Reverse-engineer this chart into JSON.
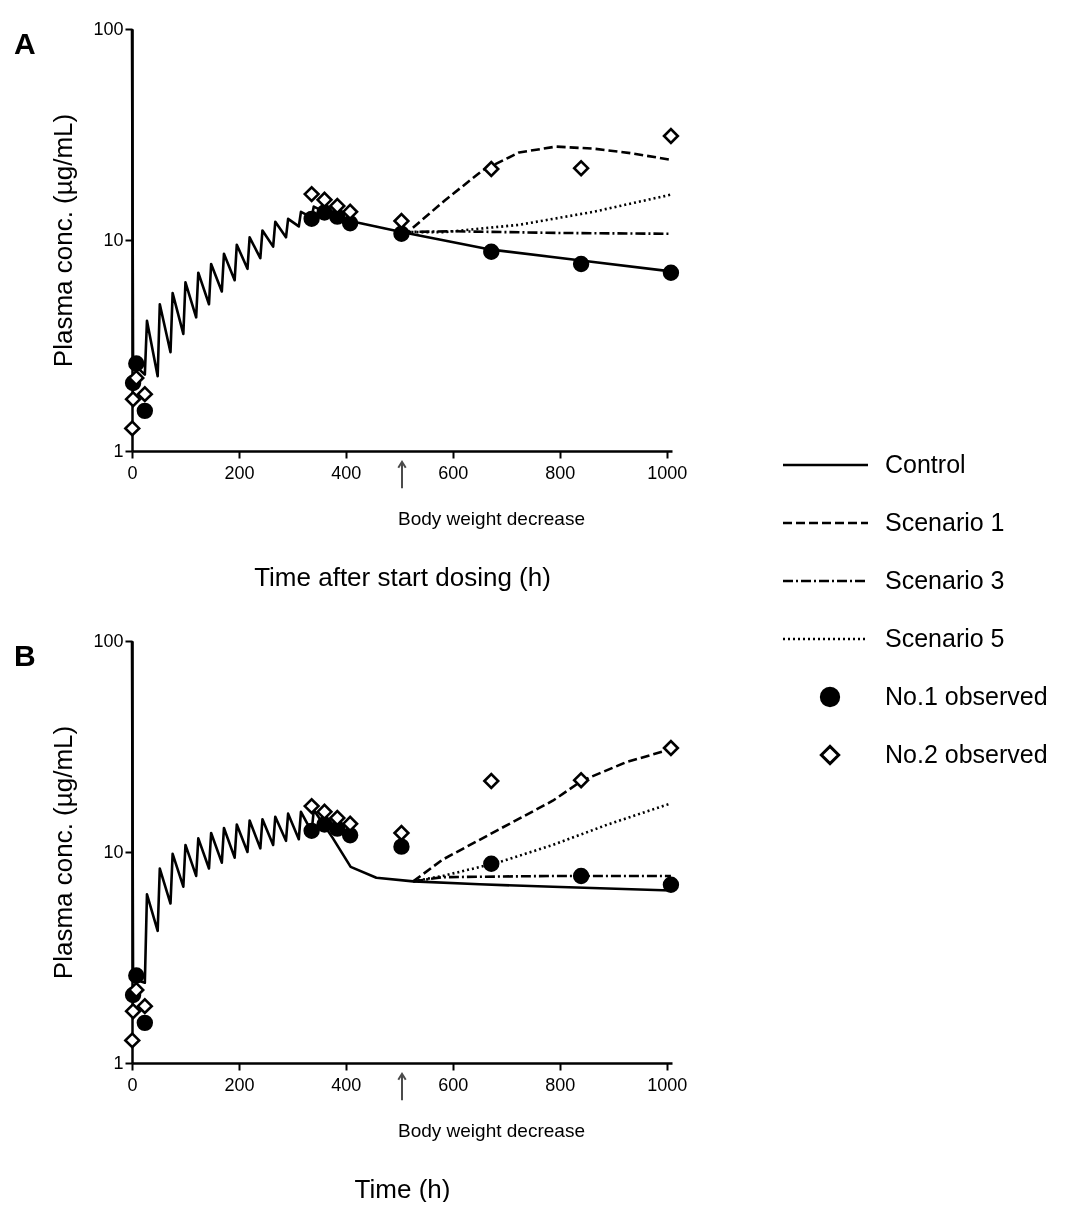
{
  "chart_data": [
    {
      "type": "line",
      "title": "A",
      "xlabel": "Time after start dosing (h)",
      "ylabel": "Plasma conc. (µg/mL)",
      "xlim": [
        0,
        1010
      ],
      "xticks": [
        0,
        200,
        400,
        600,
        800,
        1000
      ],
      "ylim": [
        1,
        100
      ],
      "yticks": [
        1,
        10,
        100
      ],
      "log": true,
      "grid": false,
      "legend": "right",
      "annotations": [
        "Body weight decrease"
      ],
      "series": [
        {
          "name": "Control",
          "type": "line",
          "line_style": "solid",
          "color": "#000000",
          "x": [
            0,
            2,
            24,
            28,
            48,
            52,
            72,
            76,
            96,
            100,
            120,
            124,
            144,
            148,
            168,
            172,
            192,
            196,
            216,
            220,
            240,
            244,
            264,
            268,
            288,
            292,
            312,
            316,
            336,
            340,
            360,
            408,
            504,
            672,
            840,
            1008
          ],
          "values": [
            100,
            2.6,
            2.3,
            4.14,
            2.26,
            4.96,
            2.94,
            5.6,
            3.59,
            6.3,
            4.3,
            7.0,
            4.96,
            7.7,
            5.7,
            8.6,
            6.45,
            9.5,
            7.3,
            10.3,
            8.2,
            11.1,
            9.3,
            12.2,
            10.3,
            12.6,
            11.6,
            13.6,
            12.8,
            14.4,
            13.6,
            12.3,
            10.9,
            9.0,
            8.0,
            7.1
          ]
        },
        {
          "name": "Scenario 1",
          "type": "line",
          "line_style": "dashed",
          "color": "#000000",
          "x": [
            504,
            516,
            585,
            655,
            724,
            793,
            863,
            932,
            1008
          ],
          "values": [
            10.9,
            10.9,
            15.4,
            21.3,
            26.0,
            27.7,
            27.1,
            25.8,
            24.0
          ]
        },
        {
          "name": "Scenario 3",
          "type": "line",
          "line_style": "dashdot",
          "color": "#000000",
          "x": [
            504,
            600,
            800,
            1008
          ],
          "values": [
            10.9,
            11.0,
            10.8,
            10.7
          ]
        },
        {
          "name": "Scenario 5",
          "type": "line",
          "line_style": "dotted",
          "color": "#000000",
          "x": [
            504,
            585,
            724,
            863,
            1008
          ],
          "values": [
            10.9,
            10.9,
            11.8,
            13.6,
            16.4
          ]
        },
        {
          "name": "No.1 observed",
          "type": "scatter",
          "marker": "circle",
          "color": "#000000",
          "x": [
            2,
            8,
            24,
            336,
            360,
            384,
            408,
            504,
            672,
            840,
            1008
          ],
          "values": [
            2.1,
            2.6,
            1.55,
            12.6,
            13.5,
            12.9,
            12.0,
            10.7,
            8.8,
            7.7,
            7.0
          ]
        },
        {
          "name": "No.2 observed",
          "type": "scatter",
          "marker": "diamond",
          "color": "#000000",
          "x": [
            0.5,
            2,
            8,
            24,
            336,
            360,
            384,
            408,
            504,
            672,
            840,
            1008
          ],
          "values": [
            1.28,
            1.76,
            2.22,
            1.86,
            16.5,
            15.5,
            14.5,
            13.6,
            12.3,
            21.7,
            21.9,
            31.1
          ]
        }
      ]
    },
    {
      "type": "line",
      "title": "B",
      "xlabel": "Time (h)",
      "ylabel": "Plasma conc. (µg/mL)",
      "xlim": [
        0,
        1010
      ],
      "xticks": [
        0,
        200,
        400,
        600,
        800,
        1000
      ],
      "ylim": [
        1,
        100
      ],
      "yticks": [
        1,
        10,
        100
      ],
      "log": true,
      "grid": false,
      "annotations": [
        "Body weight decrease"
      ],
      "series": [
        {
          "name": "Control",
          "type": "line",
          "line_style": "solid",
          "color": "#000000",
          "x": [
            0,
            2,
            24,
            28,
            48,
            52,
            72,
            76,
            96,
            100,
            120,
            124,
            144,
            148,
            168,
            172,
            192,
            196,
            216,
            220,
            240,
            244,
            264,
            268,
            288,
            292,
            312,
            316,
            336,
            340,
            375,
            409,
            457,
            526,
            650,
            787,
            1008
          ],
          "values": [
            100,
            2.5,
            2.4,
            6.3,
            4.23,
            8.35,
            5.7,
            9.8,
            6.85,
            10.8,
            7.7,
            11.6,
            8.35,
            12.3,
            8.9,
            13.0,
            9.4,
            13.5,
            10.0,
            14.1,
            10.4,
            14.3,
            10.8,
            14.7,
            11.3,
            15.2,
            11.5,
            15.5,
            12.5,
            15.8,
            11.7,
            8.5,
            7.55,
            7.26,
            7.03,
            6.84,
            6.57
          ]
        },
        {
          "name": "Scenario 1",
          "type": "line",
          "line_style": "dashed",
          "color": "#000000",
          "x": [
            526,
            581,
            684,
            787,
            842,
            925,
            1008
          ],
          "values": [
            7.26,
            9.2,
            12.7,
            17.5,
            21.8,
            26.7,
            30.7
          ]
        },
        {
          "name": "Scenario 3",
          "type": "line",
          "line_style": "dashdot",
          "color": "#000000",
          "x": [
            526,
            581,
            787,
            1008
          ],
          "values": [
            7.26,
            7.6,
            7.7,
            7.7
          ]
        },
        {
          "name": "Scenario 5",
          "type": "line",
          "line_style": "dotted",
          "color": "#000000",
          "x": [
            526,
            581,
            684,
            787,
            890,
            1008
          ],
          "values": [
            7.26,
            7.7,
            8.9,
            10.8,
            13.5,
            17.0
          ]
        },
        {
          "name": "No.1 observed",
          "type": "scatter",
          "marker": "circle",
          "color": "#000000",
          "x": [
            2,
            8,
            24,
            336,
            360,
            384,
            408,
            504,
            672,
            840,
            1008
          ],
          "values": [
            2.1,
            2.6,
            1.55,
            12.6,
            13.5,
            12.9,
            12.0,
            10.6,
            8.8,
            7.7,
            7.0
          ]
        },
        {
          "name": "No.2 observed",
          "type": "scatter",
          "marker": "diamond",
          "color": "#000000",
          "x": [
            0.5,
            2,
            8,
            24,
            336,
            360,
            384,
            408,
            504,
            672,
            840,
            1008
          ],
          "values": [
            1.28,
            1.76,
            2.22,
            1.86,
            16.5,
            15.5,
            14.5,
            13.6,
            12.3,
            21.7,
            21.9,
            31.1
          ]
        }
      ]
    }
  ]
}
